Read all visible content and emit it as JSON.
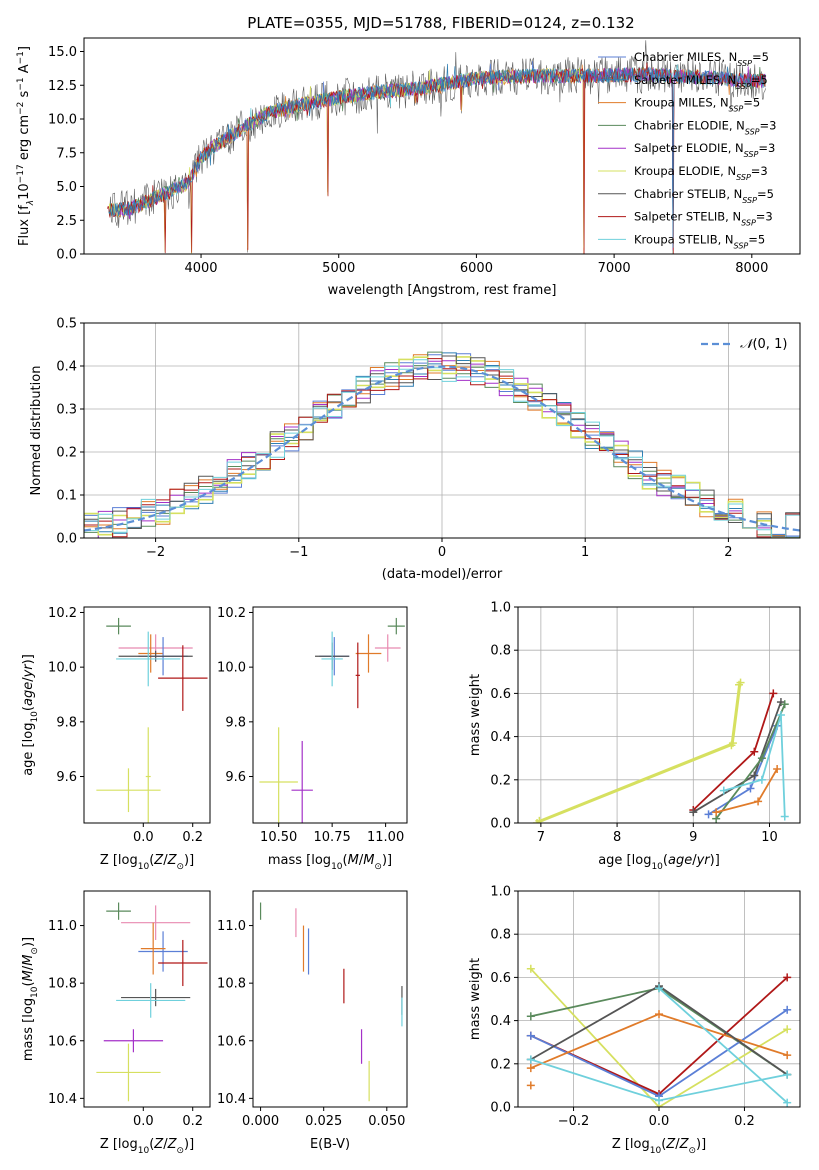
{
  "figure_title": "PLATE=0355, MJD=51788, FIBERID=0124, z=0.132",
  "colors": {
    "Chabrier MILES": "#5b7fd6",
    "Salpeter MILES": "#2f7fb3",
    "Kroupa MILES": "#e07b2a",
    "Chabrier ELODIE": "#5a8a5c",
    "Salpeter ELODIE": "#a431c8",
    "Kroupa ELODIE": "#d6e060",
    "Chabrier STELIB": "#555555",
    "Salpeter STELIB": "#b01818",
    "Kroupa STELIB": "#6fd0dc",
    "pink": "#e88ab0",
    "normal": "#5b8fd6"
  },
  "chart_data": [
    {
      "id": "spectrum",
      "type": "line",
      "title": "PLATE=0355, MJD=51788, FIBERID=0124, z=0.132",
      "xlabel": "wavelength [Angstrom, rest frame]",
      "ylabel_parts": [
        "Flux [f",
        "λ",
        "10",
        "−17",
        " erg cm",
        "−2",
        " s",
        "−1",
        " A",
        "−1",
        "]"
      ],
      "xlim": [
        3150,
        8350
      ],
      "ylim": [
        0,
        16
      ],
      "xticks": [
        4000,
        5000,
        6000,
        7000,
        8000
      ],
      "xtick_labels": [
        "4000",
        "5000",
        "6000",
        "7000",
        "8000"
      ],
      "yticks": [
        0,
        2.5,
        5,
        7.5,
        10,
        12.5,
        15
      ],
      "ytick_labels": [
        "0.0",
        "2.5",
        "5.0",
        "7.5",
        "10.0",
        "12.5",
        "15.0"
      ],
      "legend": [
        {
          "name": "Chabrier MILES",
          "sub": "5",
          "color": "#5b7fd6"
        },
        {
          "name": "Salpeter MILES",
          "sub": "5",
          "color": "#2f7fb3"
        },
        {
          "name": "Kroupa MILES",
          "sub": "5",
          "color": "#e07b2a"
        },
        {
          "name": "Chabrier ELODIE",
          "sub": "3",
          "color": "#5a8a5c"
        },
        {
          "name": "Salpeter ELODIE",
          "sub": "3",
          "color": "#a431c8"
        },
        {
          "name": "Kroupa ELODIE",
          "sub": "3",
          "color": "#d6e060"
        },
        {
          "name": "Chabrier STELIB",
          "sub": "5",
          "color": "#555555"
        },
        {
          "name": "Salpeter STELIB",
          "sub": "3",
          "color": "#b01818"
        },
        {
          "name": "Kroupa STELIB",
          "sub": "5",
          "color": "#6fd0dc"
        }
      ],
      "legend_prefix": "N",
      "legend_sub_label": "SSP",
      "continuum_x": [
        3320,
        3500,
        3700,
        3900,
        4000,
        4100,
        4300,
        4500,
        4700,
        5000,
        5300,
        5600,
        6000,
        6400,
        6800,
        7200,
        7600,
        8100
      ],
      "continuum_y": [
        3.2,
        3.4,
        4.3,
        5.2,
        7.2,
        8.0,
        9.3,
        10.5,
        11.0,
        11.6,
        12.0,
        12.3,
        13.0,
        13.2,
        13.2,
        13.3,
        13.1,
        12.8
      ],
      "drops": [
        {
          "x": 3740,
          "y": 0.0
        },
        {
          "x": 3930,
          "y": 0.0
        },
        {
          "x": 4340,
          "y": 0.0
        },
        {
          "x": 4920,
          "y": 4.2
        },
        {
          "x": 5890,
          "y": 10.2
        },
        {
          "x": 6780,
          "y": 0.0
        },
        {
          "x": 7430,
          "y": 0.0
        }
      ],
      "noise_seed": 355
    },
    {
      "id": "residuals",
      "type": "step",
      "xlabel": "(data-model)/error",
      "ylabel": "Normed distribution",
      "xlim": [
        -2.5,
        2.5
      ],
      "ylim": [
        0,
        0.5
      ],
      "xticks": [
        -2,
        -1,
        0,
        1,
        2
      ],
      "xtick_labels": [
        "−2",
        "−1",
        "0",
        "1",
        "2"
      ],
      "yticks": [
        0,
        0.1,
        0.2,
        0.3,
        0.4,
        0.5
      ],
      "ytick_labels": [
        "0.0",
        "0.1",
        "0.2",
        "0.3",
        "0.4",
        "0.5"
      ],
      "grid": true,
      "legend": "N(0,1)",
      "bin_width": 0.1
    },
    {
      "id": "age_vs_Z",
      "type": "errorbar",
      "xlabel": "Z [log10(Z/Z⊙)]",
      "ylabel": "age  [log10(age/yr)]",
      "xlim": [
        -0.24,
        0.27
      ],
      "ylim": [
        9.43,
        10.22
      ],
      "xticks": [
        0,
        0.2
      ],
      "xtick_labels": [
        "0.0",
        "0.2"
      ],
      "yticks": [
        9.6,
        9.8,
        10.0,
        10.2
      ],
      "ytick_labels": [
        "9.6",
        "9.8",
        "10.0",
        "10.2"
      ],
      "points": [
        {
          "x": -0.1,
          "xerr": 0.05,
          "y": 10.15,
          "yerr": 0.03,
          "color": "#5a8a5c"
        },
        {
          "x": 0.05,
          "xerr": 0.15,
          "y": 10.07,
          "yerr": 0.05,
          "color": "#e88ab0"
        },
        {
          "x": 0.03,
          "xerr": 0.05,
          "y": 10.05,
          "yerr": 0.07,
          "color": "#e07b2a"
        },
        {
          "x": 0.08,
          "xerr": 0.1,
          "y": 10.04,
          "yerr": 0.07,
          "color": "#5b7fd6"
        },
        {
          "x": 0.05,
          "xerr": 0.15,
          "y": 10.04,
          "yerr": 0.02,
          "color": "#555555"
        },
        {
          "x": 0.02,
          "xerr": 0.13,
          "y": 10.03,
          "yerr": 0.1,
          "color": "#6fd0dc"
        },
        {
          "x": 0.16,
          "xerr": 0.1,
          "y": 9.96,
          "yerr": 0.12,
          "color": "#b01818"
        },
        {
          "x": 0.02,
          "xerr": 0.01,
          "y": 9.6,
          "yerr": 0.18,
          "color": "#d6e060"
        },
        {
          "x": -0.06,
          "xerr": 0.13,
          "y": 9.55,
          "yerr": 0.08,
          "color": "#d6e060"
        }
      ]
    },
    {
      "id": "age_vs_mass",
      "type": "errorbar",
      "xlabel": "mass [log10(M/M⊙)]",
      "ylabel": "",
      "xlim": [
        10.38,
        11.1
      ],
      "ylim": [
        9.43,
        10.22
      ],
      "xticks": [
        10.5,
        10.75,
        11.0
      ],
      "xtick_labels": [
        "10.50",
        "10.75",
        "11.00"
      ],
      "yticks": [
        9.6,
        9.8,
        10.0,
        10.2
      ],
      "ytick_labels": [
        "9.6",
        "9.8",
        "10.0",
        "10.2"
      ],
      "points": [
        {
          "x": 11.05,
          "xerr": 0.04,
          "y": 10.15,
          "yerr": 0.03,
          "color": "#5a8a5c"
        },
        {
          "x": 11.01,
          "xerr": 0.06,
          "y": 10.07,
          "yerr": 0.05,
          "color": "#e88ab0"
        },
        {
          "x": 10.92,
          "xerr": 0.06,
          "y": 10.05,
          "yerr": 0.07,
          "color": "#e07b2a"
        },
        {
          "x": 10.76,
          "xerr": 0.07,
          "y": 10.04,
          "yerr": 0.07,
          "color": "#5b7fd6"
        },
        {
          "x": 10.75,
          "xerr": 0.08,
          "y": 10.04,
          "yerr": 0.05,
          "color": "#555555"
        },
        {
          "x": 10.75,
          "xerr": 0.05,
          "y": 10.03,
          "yerr": 0.1,
          "color": "#6fd0dc"
        },
        {
          "x": 10.87,
          "xerr": 0.01,
          "y": 9.97,
          "yerr": 0.12,
          "color": "#b01818"
        },
        {
          "x": 10.61,
          "xerr": 0.05,
          "y": 9.55,
          "yerr": 0.18,
          "color": "#a431c8"
        },
        {
          "x": 10.5,
          "xerr": 0.09,
          "y": 9.58,
          "yerr": 0.2,
          "color": "#d6e060"
        }
      ]
    },
    {
      "id": "weight_vs_age",
      "type": "line",
      "xlabel": "age  [log10(age/yr)]",
      "ylabel": "mass weight",
      "xlim": [
        6.7,
        10.4
      ],
      "ylim": [
        0,
        1
      ],
      "xticks": [
        7,
        8,
        9,
        10
      ],
      "xtick_labels": [
        "7",
        "8",
        "9",
        "10"
      ],
      "yticks": [
        0,
        0.2,
        0.4,
        0.6,
        0.8,
        1.0
      ],
      "ytick_labels": [
        "0.0",
        "0.2",
        "0.4",
        "0.6",
        "0.8",
        "1.0"
      ],
      "grid": true,
      "series": [
        {
          "color": "#d6e060",
          "x": [
            6.95,
            9.5,
            9.6
          ],
          "y": [
            0.0,
            0.36,
            0.64
          ]
        },
        {
          "color": "#d6e060",
          "x": [
            6.98,
            9.52,
            9.62
          ],
          "y": [
            0.01,
            0.37,
            0.65
          ]
        },
        {
          "color": "#b01818",
          "x": [
            9.0,
            9.8,
            10.05
          ],
          "y": [
            0.06,
            0.33,
            0.6
          ]
        },
        {
          "color": "#5b7fd6",
          "x": [
            9.2,
            9.75,
            10.1
          ],
          "y": [
            0.04,
            0.16,
            0.45
          ]
        },
        {
          "color": "#555555",
          "x": [
            9.0,
            9.8,
            10.15
          ],
          "y": [
            0.05,
            0.22,
            0.56
          ]
        },
        {
          "color": "#5a8a5c",
          "x": [
            9.3,
            9.9,
            10.2
          ],
          "y": [
            0.02,
            0.3,
            0.55
          ]
        },
        {
          "color": "#e07b2a",
          "x": [
            9.3,
            9.85,
            10.1
          ],
          "y": [
            0.05,
            0.1,
            0.25
          ]
        },
        {
          "color": "#6fd0dc",
          "x": [
            9.4,
            9.9,
            10.15,
            10.2
          ],
          "y": [
            0.15,
            0.2,
            0.5,
            0.03
          ]
        }
      ]
    },
    {
      "id": "mass_vs_Z",
      "type": "errorbar",
      "xlabel": "Z [log10(Z/Z⊙)]",
      "ylabel": "mass [log10(M/M⊙)]",
      "xlim": [
        -0.24,
        0.27
      ],
      "ylim": [
        10.37,
        11.12
      ],
      "xticks": [
        0,
        0.2
      ],
      "xtick_labels": [
        "0.0",
        "0.2"
      ],
      "yticks": [
        10.4,
        10.6,
        10.8,
        11.0
      ],
      "ytick_labels": [
        "10.4",
        "10.6",
        "10.8",
        "11.0"
      ],
      "points": [
        {
          "x": -0.1,
          "xerr": 0.05,
          "y": 11.05,
          "yerr": 0.03,
          "color": "#5a8a5c"
        },
        {
          "x": 0.05,
          "xerr": 0.14,
          "y": 11.01,
          "yerr": 0.06,
          "color": "#e88ab0"
        },
        {
          "x": 0.08,
          "xerr": 0.1,
          "y": 10.91,
          "yerr": 0.07,
          "color": "#5b7fd6"
        },
        {
          "x": 0.04,
          "xerr": 0.05,
          "y": 10.92,
          "yerr": 0.09,
          "color": "#e07b2a"
        },
        {
          "x": 0.16,
          "xerr": 0.1,
          "y": 10.87,
          "yerr": 0.08,
          "color": "#b01818"
        },
        {
          "x": 0.05,
          "xerr": 0.14,
          "y": 10.75,
          "yerr": 0.03,
          "color": "#555555"
        },
        {
          "x": 0.03,
          "xerr": 0.14,
          "y": 10.74,
          "yerr": 0.06,
          "color": "#6fd0dc"
        },
        {
          "x": -0.04,
          "xerr": 0.12,
          "y": 10.6,
          "yerr": 0.04,
          "color": "#a431c8"
        },
        {
          "x": -0.06,
          "xerr": 0.13,
          "y": 10.49,
          "yerr": 0.1,
          "color": "#d6e060"
        }
      ]
    },
    {
      "id": "mass_vs_EBV",
      "type": "errorbar",
      "xlabel": "E(B-V)",
      "ylabel": "",
      "xlim": [
        -0.003,
        0.058
      ],
      "ylim": [
        10.37,
        11.12
      ],
      "xticks": [
        0.0,
        0.025,
        0.05
      ],
      "xtick_labels": [
        "0.000",
        "0.025",
        "0.050"
      ],
      "yticks": [
        10.4,
        10.6,
        10.8,
        11.0
      ],
      "ytick_labels": [
        "10.4",
        "10.6",
        "10.8",
        "11.0"
      ],
      "points": [
        {
          "x": 0.0,
          "y": 11.05,
          "yerr": 0.03,
          "color": "#5a8a5c"
        },
        {
          "x": 0.014,
          "y": 11.01,
          "yerr": 0.05,
          "color": "#e88ab0"
        },
        {
          "x": 0.017,
          "y": 10.92,
          "yerr": 0.08,
          "color": "#e07b2a"
        },
        {
          "x": 0.019,
          "y": 10.91,
          "yerr": 0.08,
          "color": "#5b7fd6"
        },
        {
          "x": 0.033,
          "y": 10.79,
          "yerr": 0.06,
          "color": "#b01818"
        },
        {
          "x": 0.04,
          "y": 10.58,
          "yerr": 0.06,
          "color": "#a431c8"
        },
        {
          "x": 0.043,
          "y": 10.46,
          "yerr": 0.07,
          "color": "#d6e060"
        },
        {
          "x": 0.056,
          "y": 10.74,
          "yerr": 0.05,
          "color": "#555555"
        },
        {
          "x": 0.056,
          "y": 10.7,
          "yerr": 0.05,
          "color": "#6fd0dc"
        }
      ]
    },
    {
      "id": "weight_vs_Z",
      "type": "line",
      "xlabel": "Z [log10(Z/Z⊙)]",
      "ylabel": "mass weight",
      "xlim": [
        -0.33,
        0.33
      ],
      "ylim": [
        0,
        1
      ],
      "xticks": [
        -0.2,
        0,
        0.2
      ],
      "xtick_labels": [
        "−0.2",
        "0.0",
        "0.2"
      ],
      "yticks": [
        0,
        0.2,
        0.4,
        0.6,
        0.8,
        1.0
      ],
      "ytick_labels": [
        "0.0",
        "0.2",
        "0.4",
        "0.6",
        "0.8",
        "1.0"
      ],
      "grid": true,
      "series": [
        {
          "color": "#d6e060",
          "x": [
            -0.3,
            0,
            0.3
          ],
          "y": [
            0.64,
            0.0,
            0.36
          ]
        },
        {
          "color": "#5a8a5c",
          "x": [
            -0.3,
            0,
            0.3
          ],
          "y": [
            0.42,
            0.55,
            0.15
          ]
        },
        {
          "color": "#b01818",
          "x": [
            -0.3,
            0,
            0.3
          ],
          "y": [
            0.33,
            0.06,
            0.6
          ]
        },
        {
          "color": "#5b7fd6",
          "x": [
            -0.3,
            0,
            0.3
          ],
          "y": [
            0.33,
            0.05,
            0.45
          ]
        },
        {
          "color": "#e07b2a",
          "x": [
            -0.3,
            0,
            0.3
          ],
          "y": [
            0.18,
            0.43,
            0.24
          ]
        },
        {
          "color": "#e07b2a",
          "x": [
            -0.3
          ],
          "y": [
            0.1
          ]
        },
        {
          "color": "#555555",
          "x": [
            -0.3,
            0,
            0.3
          ],
          "y": [
            0.22,
            0.56,
            0.15
          ]
        },
        {
          "color": "#6fd0dc",
          "x": [
            -0.3,
            0,
            0.3
          ],
          "y": [
            0.22,
            0.03,
            0.15
          ]
        },
        {
          "color": "#6fd0dc",
          "x": [
            0,
            0.3
          ],
          "y": [
            0.55,
            0.02
          ]
        }
      ]
    }
  ]
}
